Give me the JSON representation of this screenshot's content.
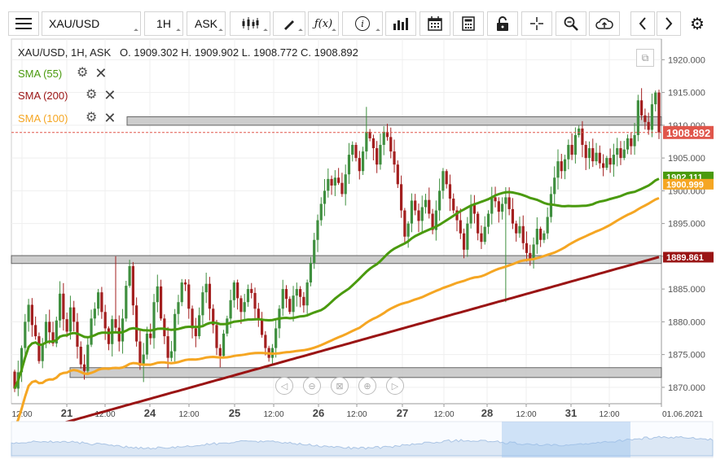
{
  "toolbar": {
    "symbol": "XAU/USD",
    "timeframe": "1H",
    "price_side": "ASK"
  },
  "icons": [
    "menu-icon",
    "candles-icon",
    "draw-icon",
    "function-icon",
    "info-icon",
    "bars-icon",
    "calendar-icon",
    "calculator-icon",
    "lock-icon",
    "crosshair-icon",
    "zoom-icon",
    "cloud-upload-icon",
    "chevron-left-icon",
    "chevron-right-icon",
    "gear-icon"
  ],
  "legend": {
    "instrument": "XAU/USD, 1H, ASK",
    "open_label": "O.",
    "open": "1909.302",
    "high_label": "H.",
    "high": "1909.902",
    "low_label": "L.",
    "low": "1908.772",
    "close_label": "C.",
    "close": "1908.892"
  },
  "indicators": [
    {
      "label": "SMA (55)",
      "color": "#4a9a0e"
    },
    {
      "label": "SMA (200)",
      "color": "#9a1414"
    },
    {
      "label": "SMA (100)",
      "color": "#f5a623"
    }
  ],
  "colors": {
    "up": "#3f8f3f",
    "down": "#a31f1f",
    "zone": "#c8c8c8"
  },
  "chart_data": {
    "type": "candlestick",
    "y_ticks": [
      "1920.000",
      "1915.000",
      "1910.000",
      "1905.000",
      "1900.000",
      "1895.000",
      "1890.000",
      "1885.000",
      "1880.000",
      "1875.000",
      "1870.000"
    ],
    "ylim": [
      1867.5,
      1922
    ],
    "x_labels": [
      "12:00",
      "21",
      "12:00",
      "24",
      "12:00",
      "25",
      "12:00",
      "26",
      "12:00",
      "27",
      "12:00",
      "28",
      "12:00",
      "31",
      "12:00",
      "01.06.2021"
    ],
    "price_labels": [
      {
        "value": "1908.892",
        "color": "#e0564b"
      },
      {
        "value": "1902.111",
        "color": "#4a9a0e"
      },
      {
        "value": "1900.999",
        "color": "#f5a623"
      },
      {
        "value": "1889.861",
        "color": "#9a1414"
      }
    ],
    "current_price": 1908.892,
    "zones": [
      [
        1910.0,
        1911.3
      ],
      [
        1888.9,
        1890.1
      ],
      [
        1871.5,
        1873.0
      ]
    ],
    "closes": [
      1869.8,
      1872.3,
      1876.0,
      1880.0,
      1882.6,
      1879.5,
      1877.8,
      1874.0,
      1876.7,
      1880.0,
      1878.4,
      1876.7,
      1880.2,
      1884.3,
      1880.4,
      1878.5,
      1882.2,
      1880.0,
      1876.2,
      1873.5,
      1872.5,
      1876.5,
      1880.5,
      1882.0,
      1884.5,
      1881.5,
      1879.0,
      1876.6,
      1880.4,
      1879.1,
      1877.0,
      1880.5,
      1885.5,
      1888.5,
      1882.5,
      1877.0,
      1873.3,
      1875.0,
      1878.2,
      1877.5,
      1883.0,
      1885.4,
      1880.5,
      1877.8,
      1874.5,
      1875.5,
      1881.2,
      1883.0,
      1886.0,
      1885.7,
      1882.0,
      1879.0,
      1877.8,
      1881.0,
      1884.5,
      1885.8,
      1882.0,
      1879.5,
      1876.0,
      1874.8,
      1878.2,
      1880.5,
      1883.3,
      1886.0,
      1883.6,
      1881.5,
      1883.0,
      1885.0,
      1884.4,
      1882.0,
      1880.4,
      1878.0,
      1876.0,
      1874.5,
      1876.0,
      1879.0,
      1882.0,
      1885.0,
      1883.5,
      1881.5,
      1884.0,
      1885.0,
      1883.8,
      1882.5,
      1886.0,
      1889.0,
      1892.5,
      1895.5,
      1898.0,
      1900.0,
      1901.8,
      1900.8,
      1902.0,
      1901.2,
      1899.5,
      1902.5,
      1905.5,
      1907.0,
      1905.0,
      1903.0,
      1906.0,
      1909.0,
      1908.0,
      1906.5,
      1904.0,
      1907.0,
      1909.0,
      1908.2,
      1906.0,
      1904.0,
      1901.0,
      1897.0,
      1893.0,
      1895.0,
      1898.5,
      1897.0,
      1895.4,
      1897.5,
      1898.6,
      1896.5,
      1894.0,
      1897.0,
      1900.0,
      1903.0,
      1901.0,
      1898.8,
      1897.0,
      1895.5,
      1893.5,
      1891.0,
      1895.0,
      1897.8,
      1896.5,
      1893.5,
      1892.2,
      1894.5,
      1896.5,
      1899.0,
      1898.4,
      1896.8,
      1898.0,
      1899.0,
      1897.2,
      1895.0,
      1893.5,
      1894.6,
      1892.0,
      1890.5,
      1889.5,
      1891.8,
      1894.2,
      1892.5,
      1893.5,
      1896.0,
      1899.5,
      1902.0,
      1904.5,
      1903.0,
      1904.8,
      1907.0,
      1905.5,
      1908.5,
      1909.5,
      1907.0,
      1905.0,
      1906.5,
      1904.5,
      1905.8,
      1904.2,
      1903.5,
      1905.0,
      1904.0,
      1905.5,
      1906.5,
      1905.0,
      1906.3,
      1908.0,
      1906.8,
      1908.5,
      1913.8,
      1911.5,
      1910.5,
      1909.3,
      1913.2,
      1915.0,
      1908.9
    ]
  }
}
